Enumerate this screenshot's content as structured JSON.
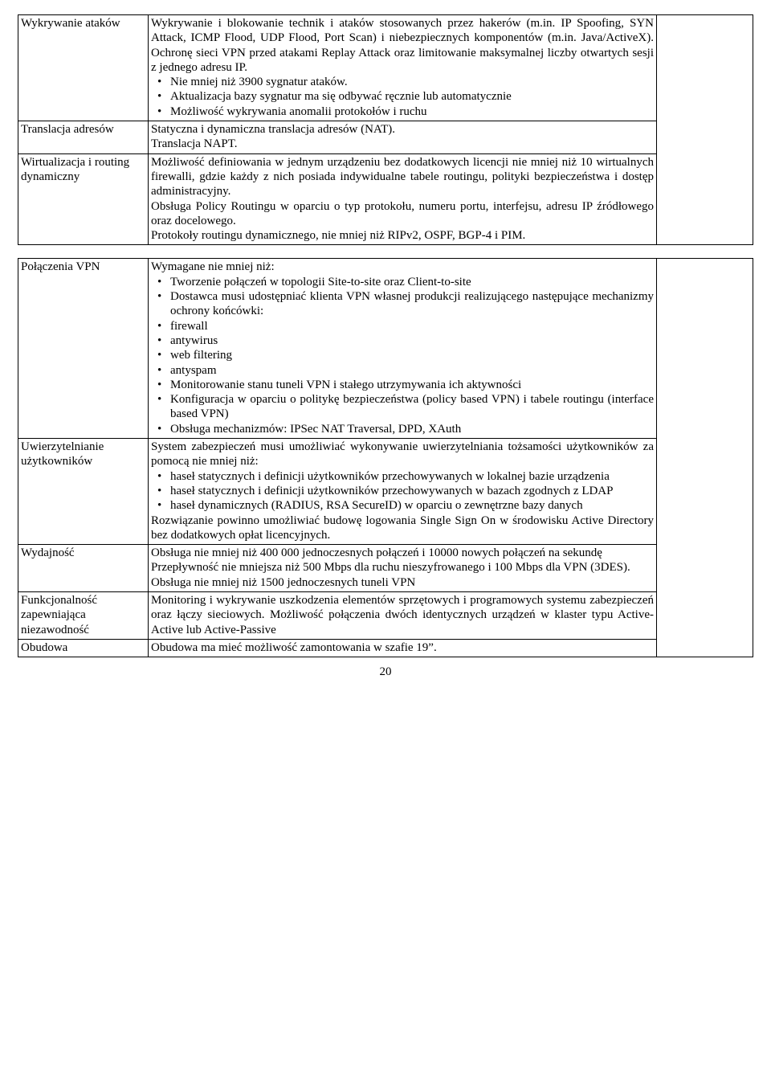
{
  "rows": [
    {
      "label": "Wykrywanie ataków",
      "desc": {
        "paras_top": [
          "Wykrywanie i blokowanie technik i ataków stosowanych przez hakerów (m.in. IP Spoofing, SYN Attack, ICMP Flood, UDP Flood, Port Scan) i niebezpiecznych komponentów (m.in. Java/ActiveX). Ochronę sieci VPN przed atakami Replay Attack oraz limitowanie maksymalnej liczby otwartych sesji z jednego adresu IP."
        ],
        "bullets": [
          "Nie mniej niż 3900 sygnatur ataków.",
          "Aktualizacja bazy sygnatur ma się odbywać ręcznie lub automatycznie",
          "Możliwość wykrywania anomalii protokołów i ruchu"
        ]
      }
    },
    {
      "label": "Translacja adresów",
      "desc": {
        "paras_top": [
          "Statyczna i dynamiczna translacja adresów (NAT).",
          "Translacja NAPT."
        ]
      }
    },
    {
      "label": "Wirtualizacja i routing dynamiczny",
      "desc": {
        "paras_top": [
          "Możliwość definiowania w jednym urządzeniu bez dodatkowych licencji nie mniej niż 10 wirtualnych firewalli, gdzie każdy z nich posiada indywidualne tabele routingu, polityki bezpieczeństwa i dostęp administracyjny.",
          "Obsługa Policy Routingu w oparciu o typ protokołu, numeru portu, interfejsu, adresu IP źródłowego oraz docelowego.",
          "Protokoły routingu dynamicznego, nie mniej niż RIPv2, OSPF, BGP-4 i PIM."
        ]
      }
    },
    {
      "label": "Połączenia VPN",
      "desc": {
        "paras_top": [
          "Wymagane nie mniej niż:"
        ],
        "bullets": [
          "Tworzenie połączeń w topologii Site-to-site oraz Client-to-site",
          "Dostawca musi udostępniać klienta VPN własnej produkcji realizującego następujące mechanizmy ochrony końcówki:",
          "firewall",
          "antywirus",
          "web filtering",
          "antyspam",
          "Monitorowanie stanu tuneli VPN i stałego utrzymywania ich aktywności",
          "Konfiguracja w oparciu o politykę bezpieczeństwa (policy based VPN) i tabele routingu (interface based VPN)",
          "Obsługa mechanizmów: IPSec NAT Traversal, DPD, XAuth"
        ]
      }
    },
    {
      "label": "Uwierzytelnianie użytkowników",
      "desc": {
        "paras_top": [
          "System zabezpieczeń musi umożliwiać wykonywanie uwierzytelniania tożsamości użytkowników za pomocą nie mniej niż:"
        ],
        "bullets": [
          "haseł statycznych i definicji użytkowników przechowywanych w lokalnej bazie urządzenia",
          "haseł statycznych i definicji użytkowników przechowywanych w bazach zgodnych z LDAP",
          "haseł dynamicznych (RADIUS, RSA SecureID) w oparciu o zewnętrzne bazy danych"
        ],
        "paras_bottom": [
          "Rozwiązanie powinno umożliwiać budowę logowania Single Sign On w środowisku Active Directory bez dodatkowych opłat licencyjnych."
        ]
      }
    },
    {
      "label": "Wydajność",
      "desc": {
        "paras_top": [
          "Obsługa nie mniej niż 400 000 jednoczesnych połączeń i 10000 nowych połączeń na sekundę",
          "Przepływność nie mniejsza niż 500 Mbps dla ruchu nieszyfrowanego i 100 Mbps dla VPN (3DES).",
          "Obsługa nie mniej niż 1500 jednoczesnych tuneli VPN"
        ]
      }
    },
    {
      "label": "Funkcjonalność zapewniająca niezawodność",
      "desc": {
        "paras_top": [
          "Monitoring i wykrywanie uszkodzenia elementów sprzętowych i programowych systemu zabezpieczeń oraz łączy sieciowych. Możliwość połączenia dwóch identycznych urządzeń w klaster typu Active-Active lub Active-Passive"
        ]
      }
    },
    {
      "label": "Obudowa",
      "desc": {
        "paras_top": [
          "Obudowa ma mieć możliwość zamontowania w szafie 19”."
        ]
      }
    }
  ],
  "groups": [
    [
      0,
      1,
      2
    ],
    [
      3,
      4,
      5,
      6,
      7
    ]
  ],
  "page_number": "20"
}
